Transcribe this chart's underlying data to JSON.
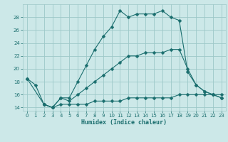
{
  "xlabel": "Humidex (Indice chaleur)",
  "bg_color": "#cce8e8",
  "grid_color": "#9dc8c8",
  "line_color": "#1a6e6e",
  "line1_x": [
    0,
    1,
    2,
    3,
    4,
    5,
    6,
    7,
    8,
    9,
    10,
    11,
    12,
    13,
    14,
    15,
    16,
    17,
    18,
    19,
    20,
    21,
    22,
    23
  ],
  "line1_y": [
    18.5,
    17.5,
    14.5,
    14.0,
    15.5,
    15.5,
    18.0,
    20.5,
    23.0,
    25.0,
    26.5,
    29.0,
    28.0,
    28.5,
    28.5,
    28.5,
    29.0,
    28.0,
    27.5,
    19.5,
    17.5,
    16.5,
    16.0,
    15.5
  ],
  "line2_x": [
    0,
    2,
    3,
    4,
    5,
    6,
    7,
    8,
    9,
    10,
    11,
    12,
    13,
    14,
    15,
    16,
    17,
    18,
    19,
    20,
    21,
    22,
    23
  ],
  "line2_y": [
    18.5,
    14.5,
    14.0,
    15.5,
    15.0,
    16.0,
    17.0,
    18.0,
    19.0,
    20.0,
    21.0,
    22.0,
    22.0,
    22.5,
    22.5,
    22.5,
    23.0,
    23.0,
    20.0,
    17.5,
    16.5,
    16.0,
    15.5
  ],
  "line3_x": [
    2,
    3,
    4,
    5,
    6,
    7,
    8,
    9,
    10,
    11,
    12,
    13,
    14,
    15,
    16,
    17,
    18,
    19,
    20,
    21,
    22,
    23
  ],
  "line3_y": [
    14.5,
    14.0,
    14.5,
    14.5,
    14.5,
    14.5,
    15.0,
    15.0,
    15.0,
    15.0,
    15.5,
    15.5,
    15.5,
    15.5,
    15.5,
    15.5,
    16.0,
    16.0,
    16.0,
    16.0,
    16.0,
    16.0
  ],
  "ylim": [
    13.5,
    30.0
  ],
  "xlim": [
    -0.5,
    23.5
  ],
  "yticks": [
    14,
    16,
    18,
    20,
    22,
    24,
    26,
    28
  ],
  "xticks": [
    0,
    1,
    2,
    3,
    4,
    5,
    6,
    7,
    8,
    9,
    10,
    11,
    12,
    13,
    14,
    15,
    16,
    17,
    18,
    19,
    20,
    21,
    22,
    23
  ],
  "xlabel_fontsize": 6,
  "tick_fontsize": 5,
  "lw": 0.8,
  "ms": 2.5
}
